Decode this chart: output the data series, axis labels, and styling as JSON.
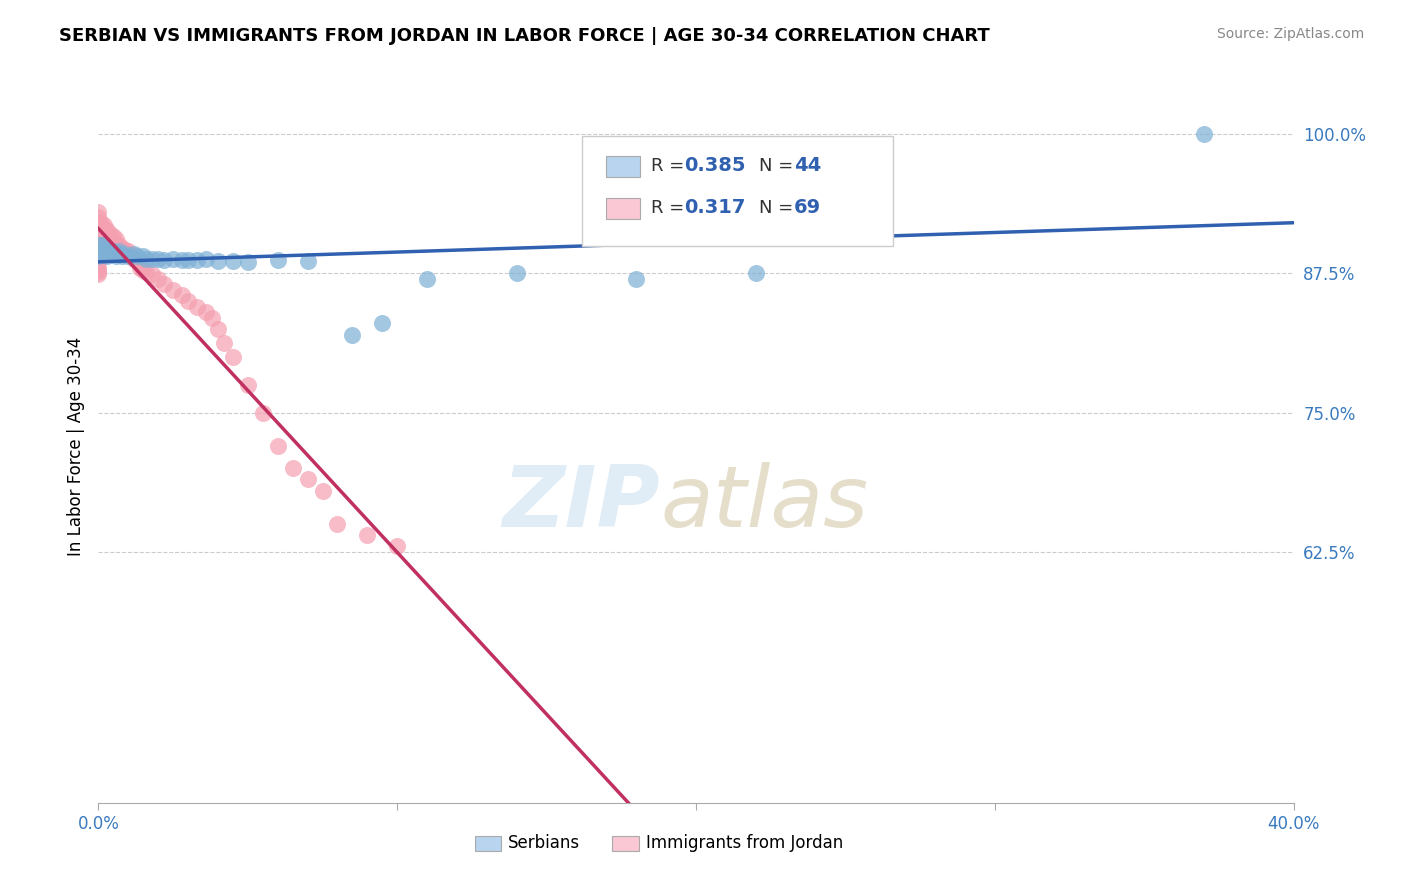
{
  "title": "SERBIAN VS IMMIGRANTS FROM JORDAN IN LABOR FORCE | AGE 30-34 CORRELATION CHART",
  "source": "Source: ZipAtlas.com",
  "ylabel": "In Labor Force | Age 30-34",
  "xlim": [
    0.0,
    0.4
  ],
  "ylim": [
    0.4,
    1.04
  ],
  "yticks": [
    0.625,
    0.75,
    0.875,
    1.0
  ],
  "yticklabels": [
    "62.5%",
    "75.0%",
    "87.5%",
    "100.0%"
  ],
  "serbian_color": "#7eb0d5",
  "jordan_color": "#f4a0b0",
  "serbian_R": 0.385,
  "serbian_N": 44,
  "jordan_R": 0.317,
  "jordan_N": 69,
  "serbian_line_color": "#3060b0",
  "jordan_line_color": "#c03060",
  "legend_box_serbian": "#b8d4ee",
  "legend_box_jordan": "#f9c8d4",
  "serbian_x": [
    0.0,
    0.0,
    0.0,
    0.001,
    0.001,
    0.002,
    0.002,
    0.003,
    0.003,
    0.003,
    0.004,
    0.004,
    0.005,
    0.006,
    0.006,
    0.007,
    0.007,
    0.008,
    0.009,
    0.01,
    0.012,
    0.013,
    0.015,
    0.016,
    0.018,
    0.02,
    0.022,
    0.025,
    0.028,
    0.03,
    0.033,
    0.036,
    0.04,
    0.045,
    0.05,
    0.06,
    0.07,
    0.085,
    0.095,
    0.11,
    0.14,
    0.18,
    0.22,
    0.37
  ],
  "serbian_y": [
    0.9,
    0.895,
    0.89,
    0.9,
    0.895,
    0.9,
    0.895,
    0.895,
    0.893,
    0.89,
    0.895,
    0.892,
    0.895,
    0.893,
    0.89,
    0.892,
    0.895,
    0.89,
    0.892,
    0.89,
    0.892,
    0.89,
    0.89,
    0.888,
    0.888,
    0.888,
    0.887,
    0.888,
    0.887,
    0.887,
    0.887,
    0.888,
    0.886,
    0.886,
    0.885,
    0.887,
    0.886,
    0.82,
    0.83,
    0.87,
    0.875,
    0.87,
    0.875,
    1.0
  ],
  "jordan_x": [
    0.0,
    0.0,
    0.0,
    0.0,
    0.0,
    0.0,
    0.0,
    0.0,
    0.0,
    0.0,
    0.0,
    0.0,
    0.0,
    0.0,
    0.001,
    0.001,
    0.001,
    0.001,
    0.002,
    0.002,
    0.002,
    0.002,
    0.002,
    0.002,
    0.003,
    0.003,
    0.003,
    0.003,
    0.004,
    0.004,
    0.004,
    0.004,
    0.005,
    0.005,
    0.005,
    0.006,
    0.006,
    0.007,
    0.008,
    0.009,
    0.01,
    0.01,
    0.011,
    0.012,
    0.013,
    0.014,
    0.015,
    0.016,
    0.018,
    0.02,
    0.022,
    0.025,
    0.028,
    0.03,
    0.033,
    0.036,
    0.038,
    0.04,
    0.042,
    0.045,
    0.05,
    0.055,
    0.06,
    0.065,
    0.07,
    0.075,
    0.08,
    0.09,
    0.1
  ],
  "jordan_y": [
    0.93,
    0.925,
    0.92,
    0.915,
    0.91,
    0.905,
    0.9,
    0.895,
    0.89,
    0.885,
    0.88,
    0.878,
    0.876,
    0.874,
    0.92,
    0.916,
    0.912,
    0.908,
    0.918,
    0.914,
    0.91,
    0.906,
    0.902,
    0.898,
    0.914,
    0.91,
    0.906,
    0.902,
    0.91,
    0.906,
    0.902,
    0.898,
    0.908,
    0.904,
    0.9,
    0.906,
    0.9,
    0.9,
    0.898,
    0.896,
    0.895,
    0.892,
    0.89,
    0.888,
    0.886,
    0.88,
    0.878,
    0.876,
    0.874,
    0.87,
    0.865,
    0.86,
    0.855,
    0.85,
    0.845,
    0.84,
    0.835,
    0.825,
    0.812,
    0.8,
    0.775,
    0.75,
    0.72,
    0.7,
    0.69,
    0.68,
    0.65,
    0.64,
    0.63
  ]
}
